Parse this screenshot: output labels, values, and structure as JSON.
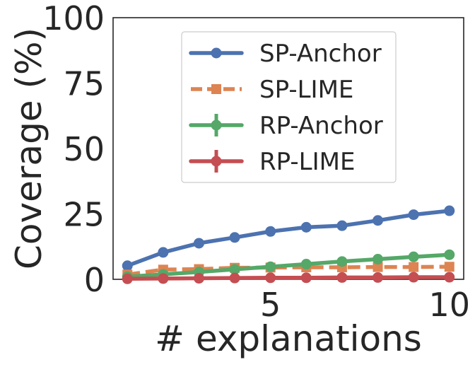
{
  "chart_data": {
    "type": "line",
    "title": "",
    "xlabel": "# explanations",
    "ylabel": "Coverage (%)",
    "xlim": [
      0.6,
      10.4
    ],
    "ylim": [
      0,
      100
    ],
    "xticks": [
      5,
      10
    ],
    "xtick_labels": [
      "5",
      "10"
    ],
    "yticks": [
      0,
      25,
      50,
      75,
      100
    ],
    "ytick_labels": [
      "0",
      "25",
      "50",
      "75",
      "100"
    ],
    "grid": false,
    "legend_position": "upper-center",
    "x": [
      1,
      2,
      3,
      4,
      5,
      6,
      7,
      8,
      9,
      10
    ],
    "series": [
      {
        "name": "SP-Anchor",
        "color": "#4c72b0",
        "dash": "solid",
        "marker": "circle",
        "error_bars": false,
        "values": [
          5.2,
          10.3,
          13.8,
          16.0,
          18.3,
          19.9,
          20.5,
          22.5,
          24.7,
          26.2
        ]
      },
      {
        "name": "SP-LIME",
        "color": "#dd8452",
        "dash": "dashed",
        "marker": "square",
        "error_bars": false,
        "values": [
          1.8,
          3.7,
          3.9,
          4.4,
          4.5,
          4.6,
          4.6,
          4.7,
          4.7,
          4.8
        ]
      },
      {
        "name": "RP-Anchor",
        "color": "#55a868",
        "dash": "solid",
        "marker": "circle",
        "error_bars": true,
        "values": [
          1.0,
          1.9,
          2.8,
          3.8,
          4.8,
          5.8,
          6.8,
          7.7,
          8.6,
          9.4
        ],
        "errors": [
          0.3,
          0.5,
          0.7,
          0.9,
          1.1,
          1.3,
          1.5,
          1.6,
          1.7,
          1.7
        ]
      },
      {
        "name": "RP-LIME",
        "color": "#c44e52",
        "dash": "solid",
        "marker": "circle",
        "error_bars": true,
        "values": [
          0.2,
          0.3,
          0.4,
          0.5,
          0.6,
          0.6,
          0.7,
          0.7,
          0.8,
          0.8
        ],
        "errors": [
          0.1,
          0.1,
          0.1,
          0.1,
          0.1,
          0.1,
          0.1,
          0.1,
          0.1,
          0.1
        ]
      }
    ]
  }
}
